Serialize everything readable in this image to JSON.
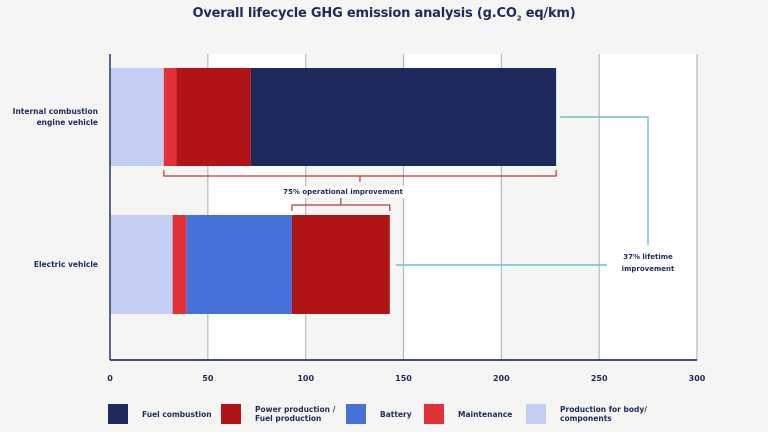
{
  "chart_data": {
    "type": "bar",
    "orientation": "horizontal",
    "stacked": true,
    "title": "Overall lifecycle GHG emission analysis (g.CO",
    "title_sub": "2",
    "title_suffix": " eq/km)",
    "categories": [
      "Internal combustion engine vehicle",
      "Electric vehicle"
    ],
    "category_lines": [
      [
        "Internal combustion",
        "engine vehicle"
      ],
      [
        "Electric vehicle"
      ]
    ],
    "series": [
      {
        "name": "Production for body/ components",
        "label_lines": [
          "Production for body/",
          "components"
        ],
        "color": "#c3cff2",
        "values": [
          27.5,
          32
        ]
      },
      {
        "name": "Maintenance",
        "label_lines": [
          "Maintenance"
        ],
        "color": "#e3313a",
        "values": [
          6.5,
          7
        ]
      },
      {
        "name": "Battery",
        "label_lines": [
          "Battery"
        ],
        "color": "#4870d9",
        "values": [
          0,
          54
        ]
      },
      {
        "name": "Power production / Fuel production",
        "label_lines": [
          "Power production /",
          "Fuel production"
        ],
        "color": "#b01414",
        "values": [
          38,
          50
        ]
      },
      {
        "name": "Fuel combustion",
        "label_lines": [
          "Fuel combustion"
        ],
        "color": "#1f2a5c",
        "values": [
          156,
          0
        ]
      }
    ],
    "legend_order": [
      "Fuel combustion",
      "Power production / Fuel production",
      "Battery",
      "Maintenance",
      "Production for body/ components"
    ],
    "xlim": [
      0,
      300
    ],
    "xticks": [
      0,
      50,
      100,
      150,
      200,
      250,
      300
    ],
    "grid": true,
    "legend_position": "bottom",
    "annotations": [
      {
        "text": "75% operational improvement"
      },
      {
        "text_lines": [
          "37% lifetime",
          "improvement"
        ]
      }
    ]
  },
  "colors": {
    "axis": "#2a3566",
    "grid": "#b5b8c6",
    "bracket": "#c0363a",
    "teal": "#6cc3c3",
    "band_white": "#ffffff",
    "band_grey": "#f5f5f3"
  }
}
